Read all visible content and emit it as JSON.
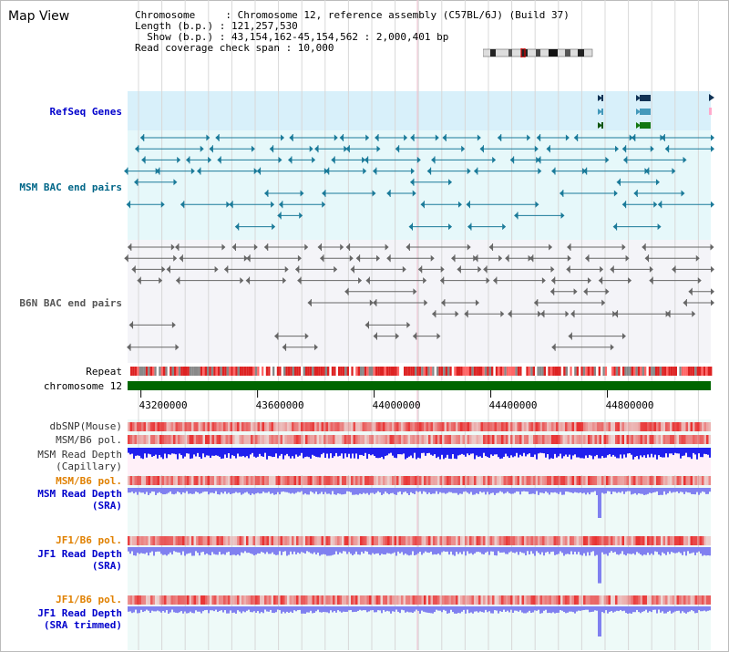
{
  "header": {
    "title": "Map View",
    "chromosome_line": "Chromosome     : Chromosome 12, reference assembly (C57BL/6J) (Build 37)",
    "length_line": "Length (b.p.) : 121,257,530",
    "show_line": "  Show (b.p.) : 43,154,162-45,154,562 : 2,000,401 bp",
    "coverage_line": "Read coverage check span : 10,000"
  },
  "tracks": {
    "refseq": {
      "label": "RefSeq Genes",
      "color": "#0000cc"
    },
    "msm_bac": {
      "label": "MSM BAC end pairs",
      "color": "#006688"
    },
    "b6n_bac": {
      "label": "B6N BAC end pairs",
      "color": "#555555"
    },
    "repeat": {
      "label": "Repeat"
    },
    "chromosome": {
      "label": "chromosome 12"
    },
    "dbsnp": {
      "label": "dbSNP(Mouse)",
      "color": "#333333"
    },
    "msm_b6_pol_1": {
      "label": "MSM/B6 pol.",
      "color": "#333333"
    },
    "msm_depth_cap": {
      "label_1": "MSM Read Depth",
      "label_2": "(Capillary)",
      "color": "#333333"
    },
    "msm_b6_pol_2": {
      "label": "MSM/B6 pol.",
      "color": "#e08000"
    },
    "msm_depth_sra": {
      "label_1": "MSM Read Depth",
      "label_2": "(SRA)",
      "color": "#0000cc"
    },
    "jf1_b6_pol_1": {
      "label": "JF1/B6 pol.",
      "color": "#e08000"
    },
    "jf1_depth_sra": {
      "label_1": "JF1 Read Depth",
      "label_2": "(SRA)",
      "color": "#0000cc"
    },
    "jf1_b6_pol_2": {
      "label": "JF1/B6 pol.",
      "color": "#e08000"
    },
    "jf1_depth_trim": {
      "label_1": "JF1 Read Depth",
      "label_2": "(SRA trimmed)",
      "color": "#0000cc"
    }
  },
  "axis": {
    "start_bp": 43154162,
    "end_bp": 45154562,
    "ticks": [
      {
        "label": "43200000",
        "value": 43200000
      },
      {
        "label": "43600000",
        "value": 43600000
      },
      {
        "label": "44000000",
        "value": 44000000
      },
      {
        "label": "44400000",
        "value": 44400000
      },
      {
        "label": "44800000",
        "value": 44800000
      }
    ]
  },
  "colors": {
    "refseq_bg": "#d8f0fa",
    "msm_bg": "#e6f8fa",
    "b6n_bg": "#f4f4f8",
    "lower_bg": "#eefaf8",
    "chromosome_bar": "#006600",
    "snp_red": "#e83030",
    "depth_blue": "#2020ee",
    "depth_light": "#8080f0"
  }
}
